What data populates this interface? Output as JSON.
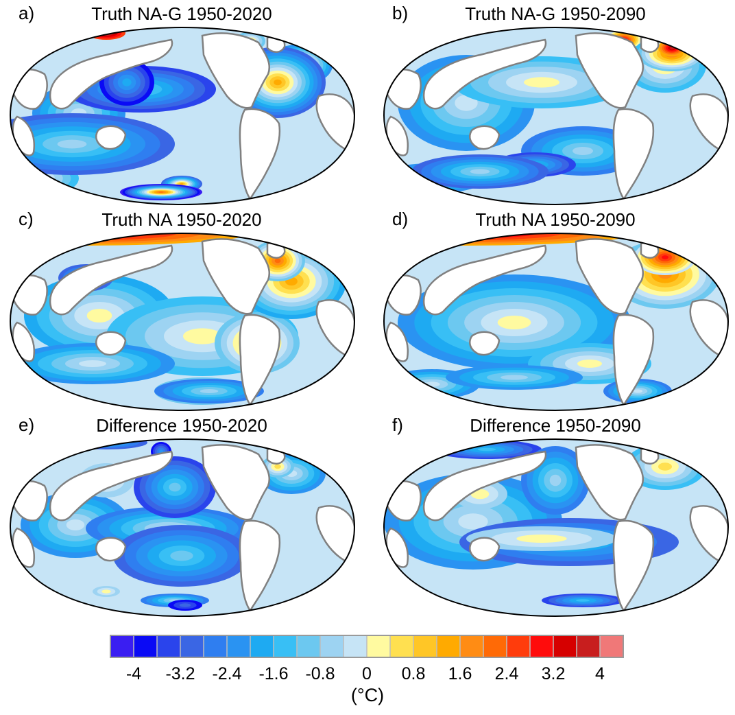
{
  "panels": [
    {
      "letter": "a)",
      "title": "Truth NA-G 1950-2020"
    },
    {
      "letter": "b)",
      "title": "Truth NA-G 1950-2090"
    },
    {
      "letter": "c)",
      "title": "Truth NA 1950-2020"
    },
    {
      "letter": "d)",
      "title": "Truth NA 1950-2090"
    },
    {
      "letter": "e)",
      "title": "Difference 1950-2020"
    },
    {
      "letter": "f)",
      "title": "Difference 1950-2090"
    }
  ],
  "colorbar": {
    "ticks": [
      "-4",
      "-3.2",
      "-2.4",
      "-1.6",
      "-0.8",
      "0",
      "0.8",
      "1.6",
      "2.4",
      "3.2",
      "4"
    ],
    "unit": "(°C)",
    "colors": [
      "#3a1ef2",
      "#0a0af5",
      "#2a44ec",
      "#3a66e4",
      "#2f7ef0",
      "#2a93f2",
      "#1eaaf2",
      "#38bff5",
      "#6cc8f0",
      "#9dd3f2",
      "#c6e4f6",
      "#fffaa0",
      "#ffe050",
      "#ffc626",
      "#ffaa00",
      "#ff8c14",
      "#ff6a06",
      "#ff3c0c",
      "#ff0c0c",
      "#d60000",
      "#c81e1e",
      "#f07878"
    ]
  }
}
